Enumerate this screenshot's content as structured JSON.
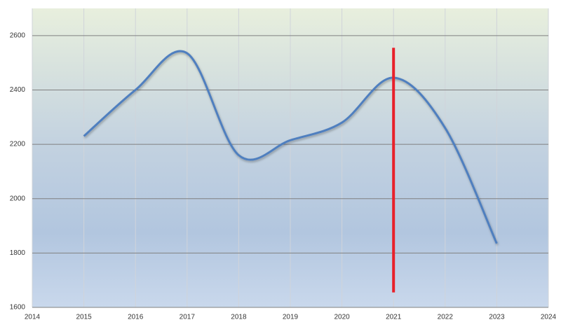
{
  "chart_data": {
    "type": "line",
    "x": [
      2015,
      2016,
      2017,
      2018,
      2019,
      2020,
      2021,
      2022,
      2023
    ],
    "series": [
      {
        "color": "#4f7fbf",
        "values": [
          2230,
          2400,
          2535,
          2160,
          2215,
          2280,
          2445,
          2260,
          1835
        ]
      }
    ],
    "xlim": [
      2014,
      2024
    ],
    "xticks": [
      2014,
      2015,
      2016,
      2017,
      2018,
      2019,
      2020,
      2021,
      2022,
      2023,
      2024
    ],
    "ylim": [
      1600,
      2700
    ],
    "yticks": [
      1600,
      1800,
      2000,
      2200,
      2400,
      2600
    ],
    "grid": true,
    "smooth": true,
    "marker": {
      "x": 2021,
      "ymin": 1655,
      "ymax": 2555,
      "color": "#e8202a"
    }
  }
}
